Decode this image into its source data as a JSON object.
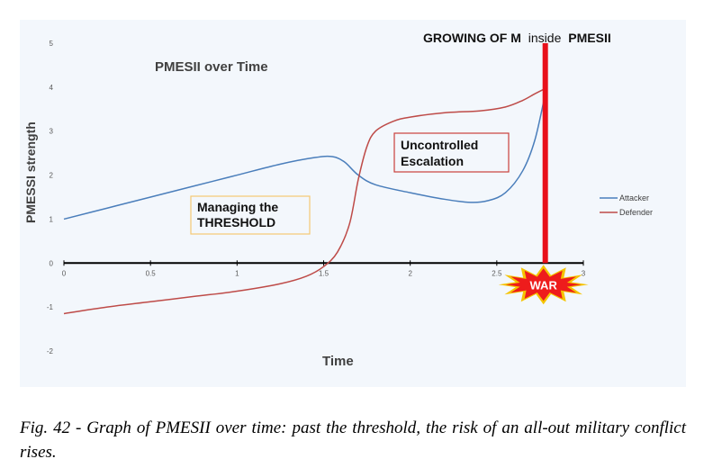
{
  "chart_data": {
    "type": "line",
    "title": "PMESII over Time",
    "ylabel": "PMESSI strength",
    "xlabel": "Time",
    "xlim": [
      0,
      3
    ],
    "ylim": [
      -2,
      5
    ],
    "x_ticks": [
      "0",
      "0.5",
      "1",
      "1.5",
      "2",
      "2.5",
      "3"
    ],
    "y_ticks": [
      "5",
      "4",
      "3",
      "2",
      "1",
      "0",
      "-1",
      "-2"
    ],
    "x_tick_values": [
      0,
      0.5,
      1,
      1.5,
      2,
      2.5,
      3
    ],
    "y_tick_values": [
      5,
      4,
      3,
      2,
      1,
      0,
      -1,
      -2
    ],
    "grid": false,
    "legend_position": "right",
    "series": [
      {
        "name": "Attacker",
        "color": "#4a7ebb",
        "x": [
          0,
          0.25,
          0.5,
          0.75,
          1.0,
          1.25,
          1.45,
          1.55,
          1.62,
          1.7,
          1.8,
          2.0,
          2.2,
          2.35,
          2.45,
          2.55,
          2.65,
          2.72,
          2.78
        ],
        "y": [
          1.0,
          1.25,
          1.5,
          1.75,
          2.0,
          2.25,
          2.4,
          2.42,
          2.3,
          2.0,
          1.78,
          1.6,
          1.45,
          1.38,
          1.42,
          1.6,
          2.1,
          2.8,
          3.85
        ]
      },
      {
        "name": "Defender",
        "color": "#be4b48",
        "x": [
          0,
          0.25,
          0.5,
          0.75,
          1.0,
          1.25,
          1.4,
          1.5,
          1.58,
          1.65,
          1.7,
          1.75,
          1.8,
          1.9,
          2.0,
          2.2,
          2.4,
          2.55,
          2.65,
          2.72,
          2.78
        ],
        "y": [
          -1.15,
          -1.0,
          -0.88,
          -0.76,
          -0.64,
          -0.47,
          -0.3,
          -0.08,
          0.25,
          0.9,
          1.9,
          2.65,
          3.0,
          3.22,
          3.32,
          3.42,
          3.46,
          3.55,
          3.7,
          3.85,
          3.97
        ]
      }
    ],
    "annotations": [
      {
        "text_lines": [
          "Managing the",
          "THRESHOLD"
        ],
        "border": "#f5c973"
      },
      {
        "text_lines": [
          "Uncontrolled",
          "Escalation"
        ],
        "border": "#c9403b"
      }
    ],
    "marker": {
      "x": 2.78,
      "color": "#e8101a",
      "label": "GROWING OF M",
      "label_suffix": "inside",
      "label_end": "PMESII"
    },
    "burst_label": "WAR"
  },
  "caption": "Fig. 42 - Graph of PMESII over time: past the threshold, the risk of an all-out military conflict rises."
}
